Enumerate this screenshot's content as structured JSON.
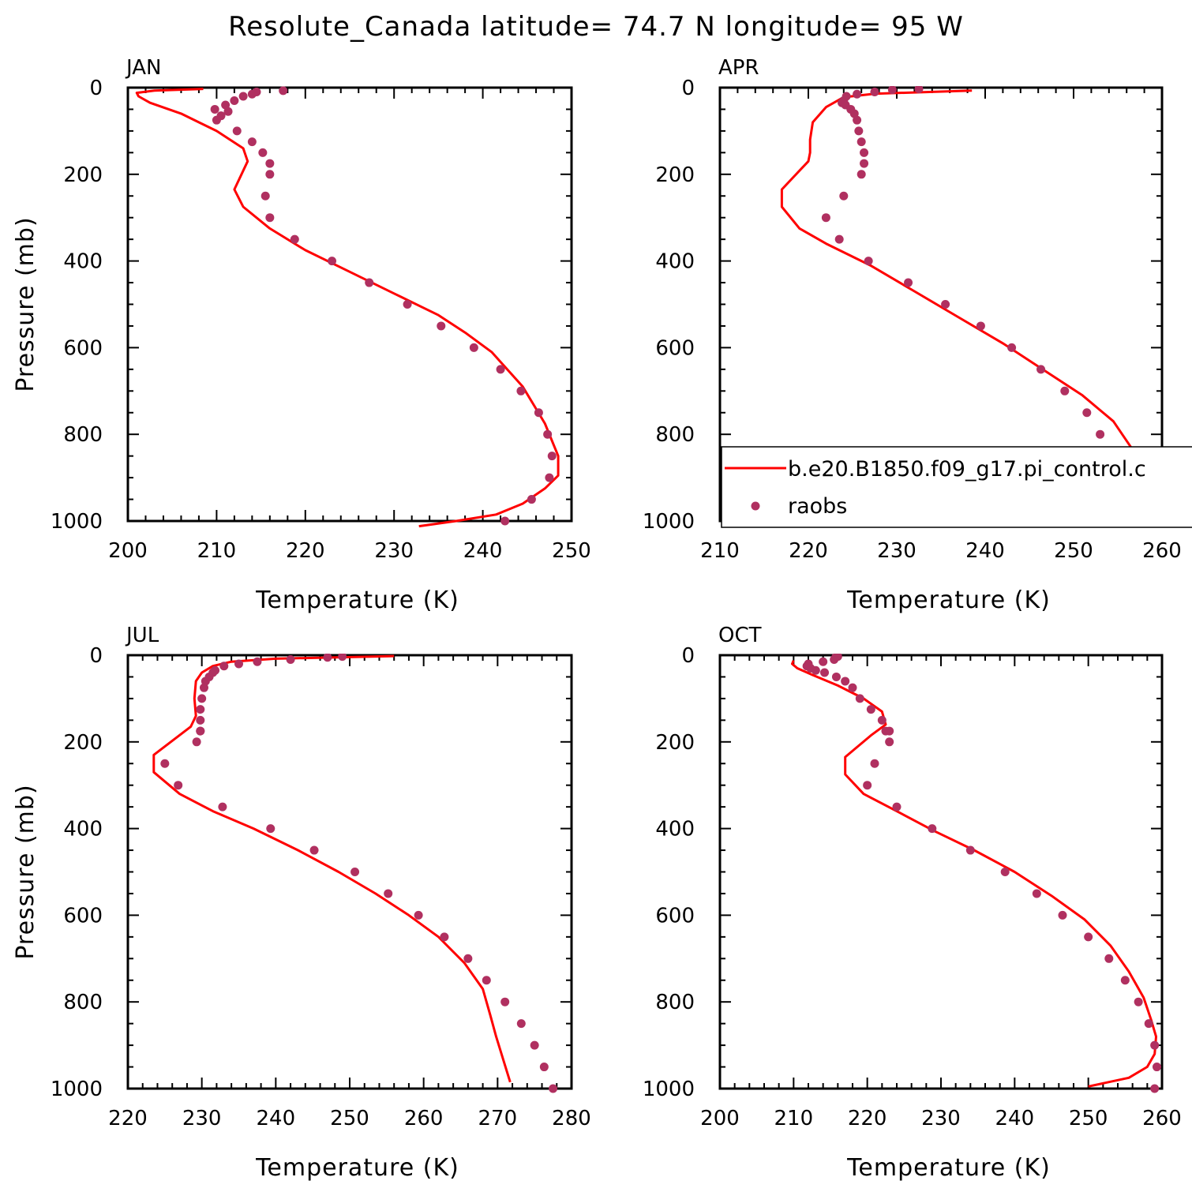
{
  "figure_title": "Resolute_Canada  latitude= 74.7 N longitude= 95 W",
  "colors": {
    "model_line": "#ff0000",
    "obs_marker": "#b03060",
    "axis": "#000000"
  },
  "legend": {
    "model_label": "b.e20.B1850.f09_g17.pi_control.c",
    "obs_label": "raobs"
  },
  "chart_data": [
    {
      "type": "line",
      "panel": "JAN",
      "xlabel": "Temperature (K)",
      "ylabel": "Pressure (mb)",
      "xlim": [
        200,
        250
      ],
      "ylim": [
        1000,
        0
      ],
      "xticks": [
        200,
        210,
        220,
        230,
        240,
        250
      ],
      "yticks": [
        0,
        200,
        400,
        600,
        800,
        1000
      ],
      "series": [
        {
          "role": "model",
          "marker": "line",
          "temperature": [
            208.5,
            203.0,
            201.0,
            201.2,
            202.5,
            206.0,
            210.0,
            213.0,
            213.5,
            212.0,
            213.0,
            216.0,
            220.0,
            225.0,
            230.0,
            235.0,
            238.0,
            241.0,
            244.5,
            247.0,
            248.5,
            248.5,
            247.0,
            244.5,
            241.5,
            237.0,
            232.8
          ],
          "pressure": [
            3,
            7,
            12,
            20,
            35,
            60,
            100,
            140,
            170,
            235,
            275,
            325,
            375,
            425,
            475,
            525,
            565,
            610,
            690,
            775,
            850,
            895,
            925,
            960,
            985,
            1000,
            1012
          ]
        },
        {
          "role": "obs",
          "marker": "dots",
          "temperature": [
            217.5,
            214.5,
            214.0,
            213.0,
            212.0,
            211.0,
            209.8,
            211.3,
            210.5,
            210.0,
            212.3,
            214.0,
            215.2,
            216.0,
            216.0,
            215.5,
            216.0,
            218.8,
            223.0,
            227.2,
            231.5,
            235.3,
            239.0,
            242.0,
            244.3,
            246.3,
            247.3,
            247.8,
            247.5,
            245.5,
            242.5
          ],
          "pressure": [
            7,
            10,
            15,
            20,
            30,
            40,
            50,
            55,
            65,
            75,
            100,
            125,
            150,
            175,
            200,
            250,
            300,
            350,
            400,
            450,
            500,
            550,
            600,
            650,
            700,
            750,
            800,
            850,
            900,
            950,
            1000
          ]
        }
      ]
    },
    {
      "type": "line",
      "panel": "APR",
      "xlabel": "Temperature (K)",
      "ylabel": "",
      "xlim": [
        210,
        260
      ],
      "ylim": [
        1000,
        0
      ],
      "xticks": [
        210,
        220,
        230,
        240,
        250,
        260
      ],
      "yticks": [
        0,
        200,
        400,
        600,
        800,
        1000
      ],
      "series": [
        {
          "role": "model",
          "marker": "line",
          "temperature": [
            238.5,
            227.5,
            224.0,
            222.0,
            220.5,
            220.2,
            220.2,
            220.0,
            217.0,
            217.0,
            219.0,
            222.0,
            227.0,
            232.0,
            237.0,
            242.0,
            246.5,
            251.0,
            254.5,
            256.5,
            257.3,
            257.0,
            255.5,
            252.0,
            247.5
          ],
          "pressure": [
            7,
            14,
            22,
            45,
            80,
            120,
            150,
            170,
            235,
            275,
            325,
            360,
            410,
            470,
            530,
            590,
            650,
            710,
            770,
            830,
            880,
            920,
            955,
            985,
            1000
          ]
        },
        {
          "role": "obs",
          "marker": "dots",
          "temperature": [
            232.5,
            229.5,
            227.5,
            225.5,
            224.3,
            224.0,
            223.8,
            224.2,
            224.8,
            225.2,
            225.5,
            225.7,
            226.0,
            226.3,
            226.3,
            226.0,
            224.0,
            222.0,
            223.5,
            226.8,
            231.3,
            235.5,
            239.5,
            243.0,
            246.3,
            249.0,
            251.5,
            253.0,
            253.7,
            254.0,
            253.0,
            251.0
          ],
          "pressure": [
            3,
            5,
            10,
            15,
            20,
            30,
            35,
            40,
            50,
            60,
            75,
            100,
            125,
            150,
            175,
            200,
            250,
            300,
            350,
            400,
            450,
            500,
            550,
            600,
            650,
            700,
            750,
            800,
            850,
            900,
            950,
            1000
          ]
        }
      ]
    },
    {
      "type": "line",
      "panel": "JUL",
      "xlabel": "Temperature (K)",
      "ylabel": "Pressure (mb)",
      "xlim": [
        220,
        280
      ],
      "ylim": [
        1000,
        0
      ],
      "xticks": [
        220,
        230,
        240,
        250,
        260,
        270,
        280
      ],
      "yticks": [
        0,
        200,
        400,
        600,
        800,
        1000
      ],
      "series": [
        {
          "role": "model",
          "marker": "line",
          "temperature": [
            256.0,
            240.0,
            234.0,
            231.5,
            230.0,
            229.2,
            229.0,
            229.2,
            228.5,
            223.5,
            223.5,
            227.0,
            231.5,
            237.0,
            243.0,
            248.5,
            253.5,
            258.0,
            262.0,
            265.5,
            268.0,
            269.0,
            269.8,
            270.8,
            271.7
          ],
          "pressure": [
            2,
            8,
            15,
            25,
            40,
            60,
            100,
            140,
            165,
            230,
            270,
            320,
            360,
            400,
            450,
            500,
            550,
            600,
            650,
            710,
            770,
            830,
            880,
            935,
            985
          ]
        },
        {
          "role": "obs",
          "marker": "dots",
          "temperature": [
            249.0,
            247.0,
            242.0,
            237.5,
            235.0,
            233.0,
            231.8,
            231.5,
            231.0,
            230.5,
            230.3,
            230.0,
            229.8,
            229.8,
            229.8,
            229.8,
            229.3,
            225.0,
            226.8,
            232.8,
            239.3,
            245.2,
            250.7,
            255.2,
            259.3,
            262.8,
            266.0,
            268.5,
            271.0,
            273.2,
            275.0,
            276.3,
            277.5
          ],
          "pressure": [
            3,
            5,
            10,
            15,
            20,
            25,
            35,
            40,
            50,
            60,
            75,
            100,
            125,
            150,
            175,
            175,
            200,
            250,
            300,
            350,
            400,
            450,
            500,
            550,
            600,
            650,
            700,
            750,
            800,
            850,
            900,
            950,
            1000
          ]
        }
      ]
    },
    {
      "type": "line",
      "panel": "OCT",
      "xlabel": "Temperature (K)",
      "ylabel": "",
      "xlim": [
        200,
        260
      ],
      "ylim": [
        1000,
        0
      ],
      "xticks": [
        200,
        210,
        220,
        230,
        240,
        250,
        260
      ],
      "yticks": [
        0,
        200,
        400,
        600,
        800,
        1000
      ],
      "series": [
        {
          "role": "model",
          "marker": "line",
          "temperature": [
            210.0,
            209.8,
            210.5,
            212.5,
            216.0,
            219.5,
            222.0,
            222.5,
            220.5,
            217.0,
            217.0,
            219.5,
            224.0,
            229.0,
            234.5,
            240.0,
            245.0,
            249.5,
            253.0,
            255.5,
            257.5,
            258.5,
            259.2,
            259.0,
            258.0,
            255.5,
            250.0
          ],
          "pressure": [
            12,
            20,
            30,
            45,
            70,
            100,
            130,
            160,
            185,
            235,
            275,
            320,
            360,
            405,
            450,
            500,
            555,
            610,
            670,
            730,
            790,
            840,
            880,
            920,
            950,
            975,
            995
          ]
        },
        {
          "role": "obs",
          "marker": "dots",
          "temperature": [
            216.0,
            215.7,
            215.5,
            214.0,
            212.0,
            211.8,
            212.3,
            213.0,
            214.2,
            215.8,
            217.0,
            218.0,
            219.0,
            220.5,
            222.0,
            222.5,
            223.0,
            223.0,
            221.0,
            220.0,
            224.0,
            228.8,
            234.0,
            238.7,
            243.0,
            246.5,
            250.0,
            252.8,
            255.0,
            256.8,
            258.2,
            259.0,
            259.3,
            259.0
          ],
          "pressure": [
            3,
            5,
            10,
            15,
            20,
            25,
            30,
            35,
            40,
            50,
            60,
            75,
            100,
            125,
            150,
            175,
            200,
            175,
            250,
            300,
            350,
            400,
            450,
            500,
            550,
            600,
            650,
            700,
            750,
            800,
            850,
            900,
            950,
            1000
          ]
        }
      ]
    }
  ]
}
